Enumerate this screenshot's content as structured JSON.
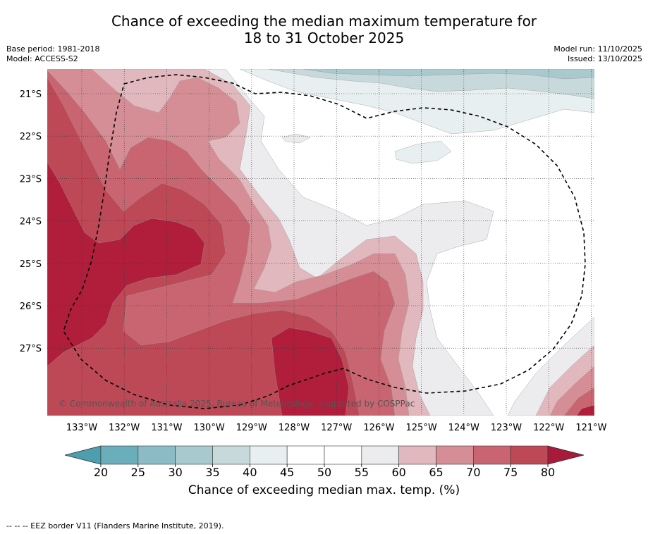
{
  "title": {
    "line1": "Chance of exceeding the median maximum temperature for",
    "line2": "18 to 31 October 2025"
  },
  "meta": {
    "base_period": "Base period: 1981-2018",
    "model": "Model: ACCESS-S2",
    "model_run": "Model run: 11/10/2025",
    "issued": "Issued: 13/10/2025"
  },
  "map": {
    "lat_labels": [
      "21°S",
      "22°S",
      "23°S",
      "24°S",
      "25°S",
      "26°S",
      "27°S"
    ],
    "lon_labels": [
      "133°W",
      "132°W",
      "131°W",
      "130°W",
      "129°W",
      "128°W",
      "127°W",
      "126°W",
      "125°W",
      "124°W",
      "123°W",
      "122°W",
      "121°W"
    ],
    "copyright": "© Commonwealth of Australia 2025, Bureau of Meteorology, supported by COSPPac"
  },
  "colorbar": {
    "ticks": [
      "20",
      "25",
      "30",
      "35",
      "40",
      "45",
      "50",
      "55",
      "60",
      "65",
      "70",
      "75",
      "80"
    ],
    "colors": [
      "#6aaebb",
      "#8bbcc6",
      "#a8c9ce",
      "#c8d9dc",
      "#e8eff0",
      "#ffffff",
      "#ffffff",
      "#ececee",
      "#e0b8bd",
      "#d58e96",
      "#c96570",
      "#bd4856",
      "#b01e3c"
    ],
    "under_color": "#4d9faf",
    "over_color": "#a81a3a",
    "label": "Chance of exceeding median max. temp. (%)"
  },
  "footer": "--  --  -- EEZ border V11 (Flanders Marine Institute, 2019)."
}
